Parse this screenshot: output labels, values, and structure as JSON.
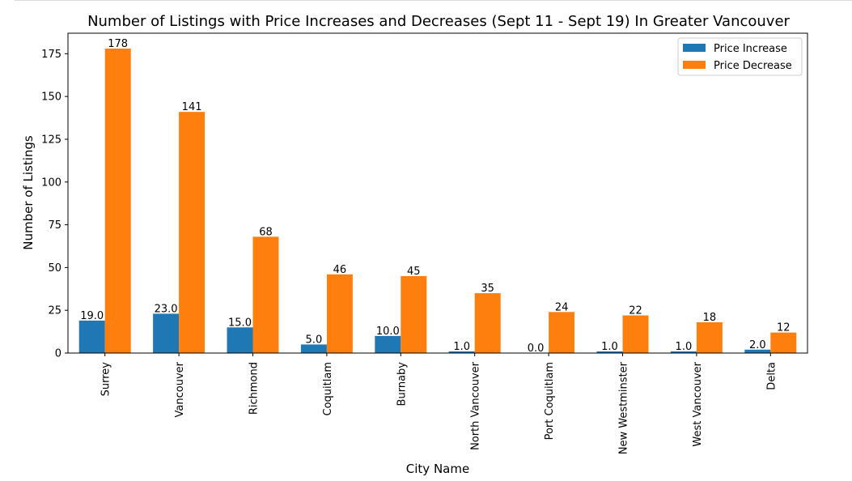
{
  "chart_data": {
    "type": "bar",
    "title": "Number of Listings with Price Increases and Decreases (Sept 11 - Sept 19) In Greater Vancouver",
    "xlabel": "City Name",
    "ylabel": "Number of Listings",
    "categories": [
      "Surrey",
      "Vancouver",
      "Richmond",
      "Coquitlam",
      "Burnaby",
      "North Vancouver",
      "Port Coquitlam",
      "New Westminster",
      "West Vancouver",
      "Delta"
    ],
    "series": [
      {
        "name": "Price Increase",
        "color": "#1f77b4",
        "values": [
          19,
          23,
          15,
          5,
          10,
          1,
          0,
          1,
          1,
          2
        ],
        "labels": [
          "19.0",
          "23.0",
          "15.0",
          "5.0",
          "10.0",
          "1.0",
          "0.0",
          "1.0",
          "1.0",
          "2.0"
        ]
      },
      {
        "name": "Price Decrease",
        "color": "#ff7f0e",
        "values": [
          178,
          141,
          68,
          46,
          45,
          35,
          24,
          22,
          18,
          12
        ],
        "labels": [
          "178",
          "141",
          "68",
          "46",
          "45",
          "35",
          "24",
          "22",
          "18",
          "12"
        ]
      }
    ],
    "ylim": [
      0,
      187
    ],
    "yticks": [
      0,
      25,
      50,
      75,
      100,
      125,
      150,
      175
    ],
    "legend_position": "top-right",
    "grid": false
  }
}
